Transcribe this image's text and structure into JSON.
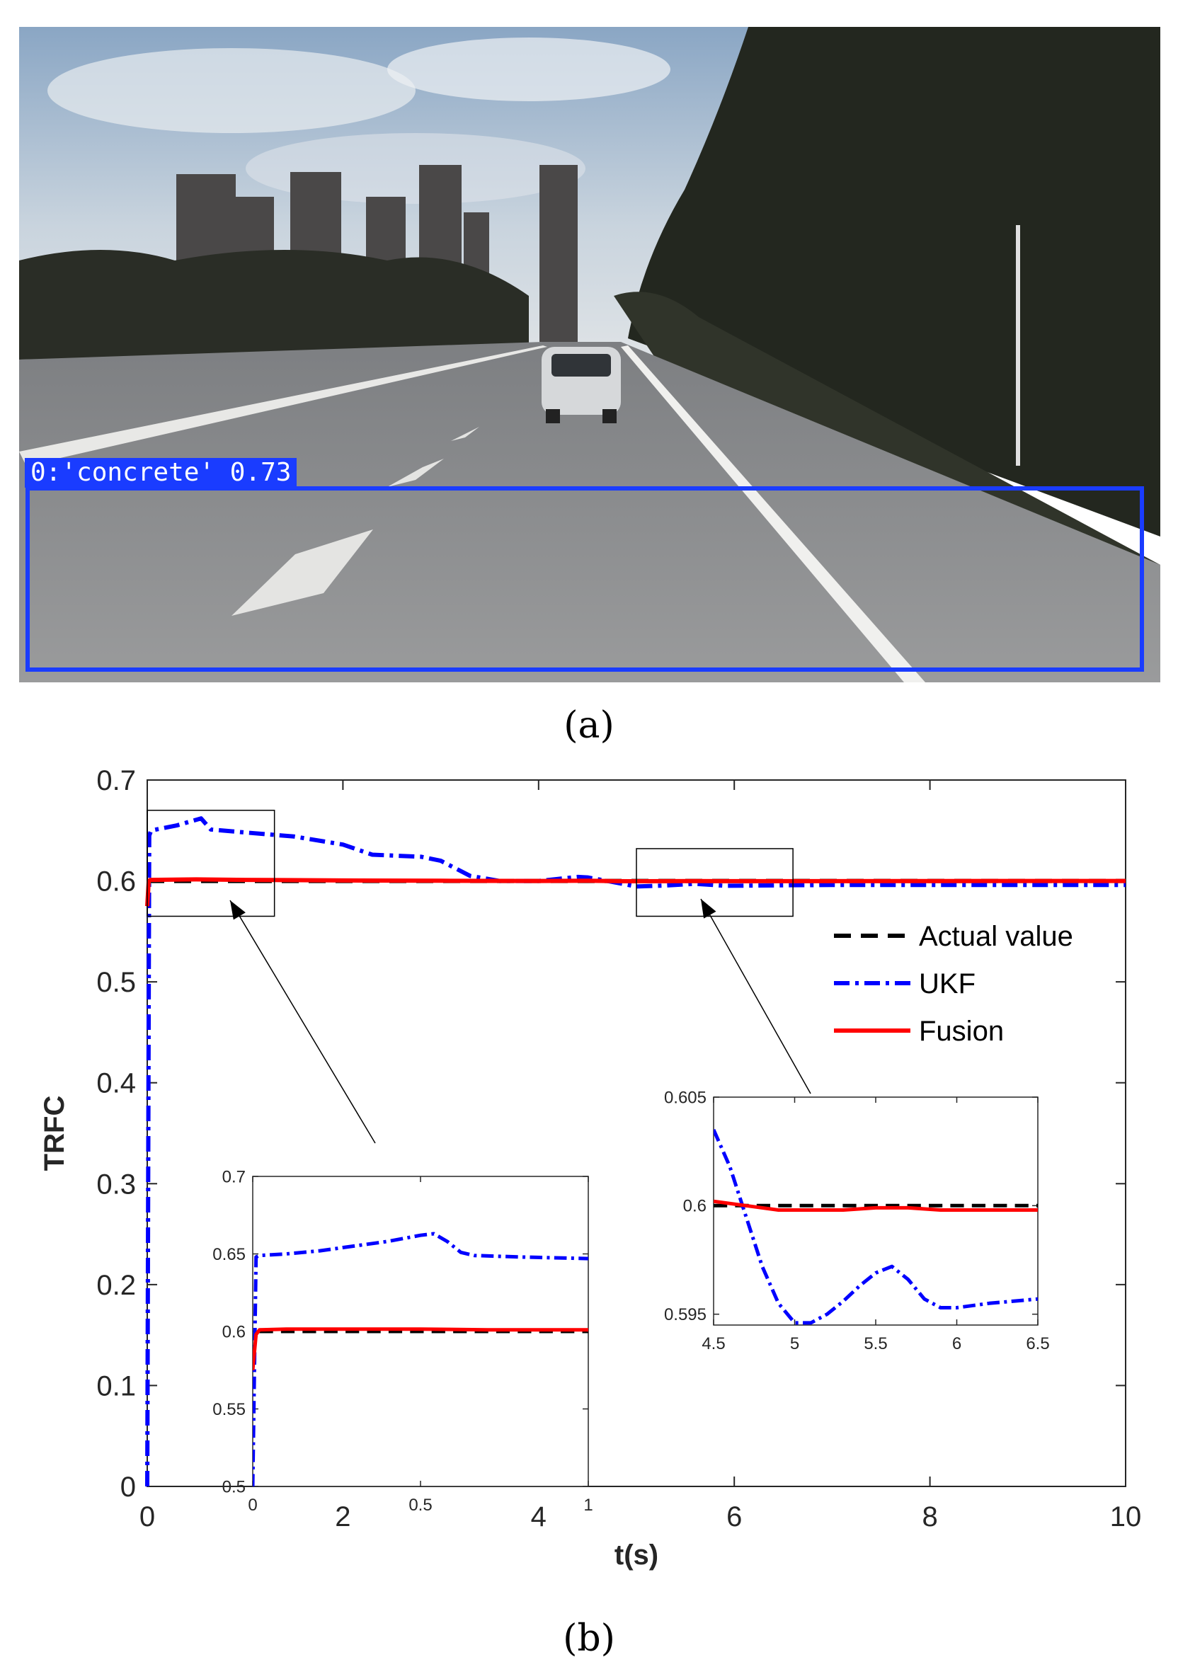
{
  "panels": {
    "a_label": "(a)",
    "b_label": "(b)"
  },
  "photo": {
    "detection_label": "0:'concrete' 0.73",
    "box_color": "#1a3cff"
  },
  "chart_data": [
    {
      "type": "line",
      "xlabel": "t(s)",
      "ylabel": "TRFC",
      "xlim": [
        0,
        10
      ],
      "ylim": [
        0,
        0.7
      ],
      "xticks": [
        0,
        2,
        4,
        6,
        8,
        10
      ],
      "xtick_labels": [
        "0",
        "2",
        "4",
        "6",
        "8",
        "10"
      ],
      "yticks": [
        0,
        0.1,
        0.2,
        0.3,
        0.4,
        0.5,
        0.6,
        0.7
      ],
      "ytick_labels": [
        "0",
        "0.1",
        "0.2",
        "0.3",
        "0.4",
        "0.5",
        "0.6",
        "0.7"
      ],
      "grid": false,
      "legend": "right",
      "series": [
        {
          "name": "Actual value",
          "color": "#000000",
          "style": "dashed",
          "x": [
            0,
            0.01,
            10
          ],
          "y": [
            0.6,
            0.6,
            0.6
          ]
        },
        {
          "name": "UKF",
          "color": "#0000ff",
          "style": "dashdot",
          "x": [
            0,
            0.02,
            0.04,
            0.3,
            0.55,
            0.65,
            1.0,
            1.5,
            2.0,
            2.3,
            2.8,
            3.0,
            3.3,
            3.6,
            4.0,
            4.2,
            4.4,
            4.5,
            4.7,
            5.0,
            5.3,
            5.6,
            5.9,
            6.2,
            6.5,
            7.0,
            8.0,
            9.0,
            10.0
          ],
          "y": [
            0,
            0.645,
            0.65,
            0.655,
            0.662,
            0.651,
            0.648,
            0.644,
            0.636,
            0.626,
            0.624,
            0.62,
            0.605,
            0.6,
            0.6,
            0.602,
            0.604,
            0.6035,
            0.6,
            0.5945,
            0.5955,
            0.5972,
            0.5952,
            0.5954,
            0.5957,
            0.596,
            0.596,
            0.596,
            0.596
          ]
        },
        {
          "name": "Fusion",
          "color": "#ff0000",
          "style": "solid",
          "x": [
            0,
            0.015,
            0.03,
            0.5,
            1.0,
            2.0,
            3.0,
            4.0,
            4.5,
            4.8,
            5.0,
            5.6,
            6.0,
            6.5,
            8.0,
            10.0
          ],
          "y": [
            0.575,
            0.6,
            0.601,
            0.6015,
            0.601,
            0.6005,
            0.6002,
            0.6,
            0.6002,
            0.5998,
            0.5997,
            0.5999,
            0.5998,
            0.5998,
            0.5999,
            0.6
          ]
        }
      ],
      "zoom_boxes": [
        {
          "xlim": [
            0,
            1.3
          ],
          "ylim": [
            0.565,
            0.67
          ]
        },
        {
          "xlim": [
            5.0,
            6.6
          ],
          "ylim": [
            0.565,
            0.632
          ]
        }
      ]
    },
    {
      "type": "line",
      "role": "inset-left",
      "xlim": [
        0,
        1
      ],
      "ylim": [
        0.5,
        0.7
      ],
      "xticks": [
        0,
        0.5,
        1
      ],
      "xtick_labels": [
        "0",
        "0.5",
        "1"
      ],
      "yticks": [
        0.5,
        0.55,
        0.6,
        0.65,
        0.7
      ],
      "ytick_labels": [
        "0.5",
        "0.55",
        "0.6",
        "0.65",
        "0.7"
      ],
      "series": [
        {
          "color": "#000000",
          "style": "dashed",
          "x": [
            0.02,
            1.0
          ],
          "y": [
            0.6,
            0.6
          ]
        },
        {
          "color": "#0000ff",
          "style": "dashdot",
          "x": [
            0,
            0.01,
            0.02,
            0.1,
            0.2,
            0.3,
            0.4,
            0.5,
            0.54,
            0.58,
            0.62,
            0.66,
            0.8,
            1.0
          ],
          "y": [
            0.5,
            0.648,
            0.649,
            0.65,
            0.652,
            0.655,
            0.658,
            0.662,
            0.663,
            0.658,
            0.651,
            0.649,
            0.648,
            0.647
          ]
        },
        {
          "color": "#ff0000",
          "style": "solid",
          "x": [
            0,
            0.01,
            0.02,
            0.1,
            0.3,
            0.5,
            0.7,
            1.0
          ],
          "y": [
            0.575,
            0.598,
            0.601,
            0.6015,
            0.6015,
            0.6015,
            0.601,
            0.601
          ]
        }
      ]
    },
    {
      "type": "line",
      "role": "inset-right",
      "xlim": [
        4.5,
        6.5
      ],
      "ylim": [
        0.5945,
        0.605
      ],
      "xticks": [
        4.5,
        5,
        5.5,
        6,
        6.5
      ],
      "xtick_labels": [
        "4.5",
        "5",
        "5.5",
        "6",
        "6.5"
      ],
      "yticks": [
        0.595,
        0.6,
        0.605
      ],
      "ytick_labels": [
        "0.595",
        "0.6",
        "0.605"
      ],
      "series": [
        {
          "color": "#000000",
          "style": "dashed",
          "x": [
            4.5,
            6.5
          ],
          "y": [
            0.6,
            0.6
          ]
        },
        {
          "color": "#0000ff",
          "style": "dashdot",
          "x": [
            4.5,
            4.6,
            4.7,
            4.8,
            4.9,
            5.0,
            5.1,
            5.2,
            5.3,
            5.4,
            5.5,
            5.6,
            5.7,
            5.8,
            5.9,
            6.0,
            6.2,
            6.5
          ],
          "y": [
            0.6035,
            0.6018,
            0.5995,
            0.5972,
            0.5955,
            0.5946,
            0.5946,
            0.595,
            0.5956,
            0.5963,
            0.5969,
            0.5972,
            0.5966,
            0.5957,
            0.5953,
            0.5953,
            0.5955,
            0.5957
          ]
        },
        {
          "color": "#ff0000",
          "style": "solid",
          "x": [
            4.5,
            4.7,
            4.9,
            5.1,
            5.3,
            5.5,
            5.7,
            5.9,
            6.1,
            6.3,
            6.5
          ],
          "y": [
            0.6002,
            0.6,
            0.5998,
            0.5998,
            0.5998,
            0.5999,
            0.5999,
            0.5998,
            0.5998,
            0.5998,
            0.5998
          ]
        }
      ]
    }
  ]
}
